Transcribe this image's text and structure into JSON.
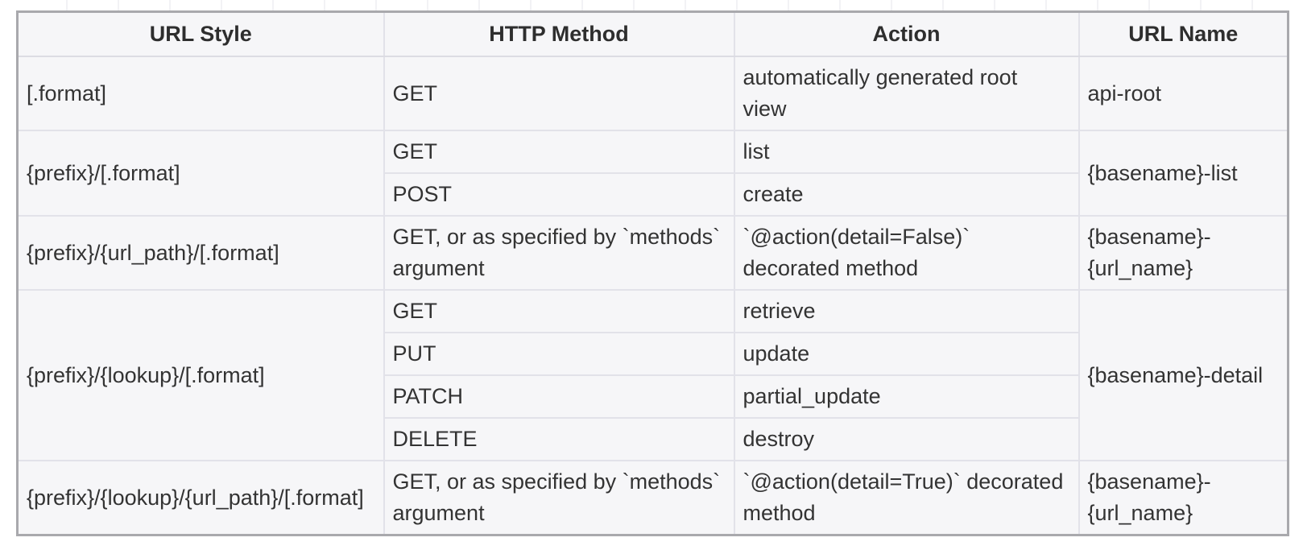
{
  "colors": {
    "cell_background": "#f6f6f8",
    "inner_border": "#e2e2e9",
    "outer_border": "#a9a9ad",
    "text": "#333333"
  },
  "table": {
    "headers": [
      "URL Style",
      "HTTP Method",
      "Action",
      "URL Name"
    ],
    "rows": [
      {
        "cells": [
          {
            "text": "[.format]"
          },
          {
            "text": "GET"
          },
          {
            "text": "automatically generated root\nview"
          },
          {
            "text": "api-root"
          }
        ]
      },
      {
        "cells": [
          {
            "text": "{prefix}/[.format]",
            "rowspan": "2"
          },
          {
            "text": "GET"
          },
          {
            "text": "list"
          },
          {
            "text": "{basename}-list",
            "rowspan": "2"
          }
        ]
      },
      {
        "cells": [
          {
            "text": "POST"
          },
          {
            "text": "create"
          }
        ]
      },
      {
        "cells": [
          {
            "text": "{prefix}/{url_path}/[.format]"
          },
          {
            "text": "GET, or as specified by `methods`\nargument"
          },
          {
            "text": "`@action(detail=False)`\ndecorated method"
          },
          {
            "text": "{basename}-\n{url_name}"
          }
        ]
      },
      {
        "cells": [
          {
            "text": "{prefix}/{lookup}/[.format]",
            "rowspan": "4"
          },
          {
            "text": "GET"
          },
          {
            "text": "retrieve"
          },
          {
            "text": "{basename}-detail",
            "rowspan": "4"
          }
        ]
      },
      {
        "cells": [
          {
            "text": "PUT"
          },
          {
            "text": "update"
          }
        ]
      },
      {
        "cells": [
          {
            "text": "PATCH"
          },
          {
            "text": "partial_update"
          }
        ]
      },
      {
        "cells": [
          {
            "text": "DELETE"
          },
          {
            "text": "destroy"
          }
        ]
      },
      {
        "cells": [
          {
            "text": "{prefix}/{lookup}/{url_path}/[.format]"
          },
          {
            "text": "GET, or as specified by `methods`\nargument"
          },
          {
            "text": "`@action(detail=True)` decorated\nmethod"
          },
          {
            "text": "{basename}-\n{url_name}"
          }
        ]
      }
    ]
  }
}
